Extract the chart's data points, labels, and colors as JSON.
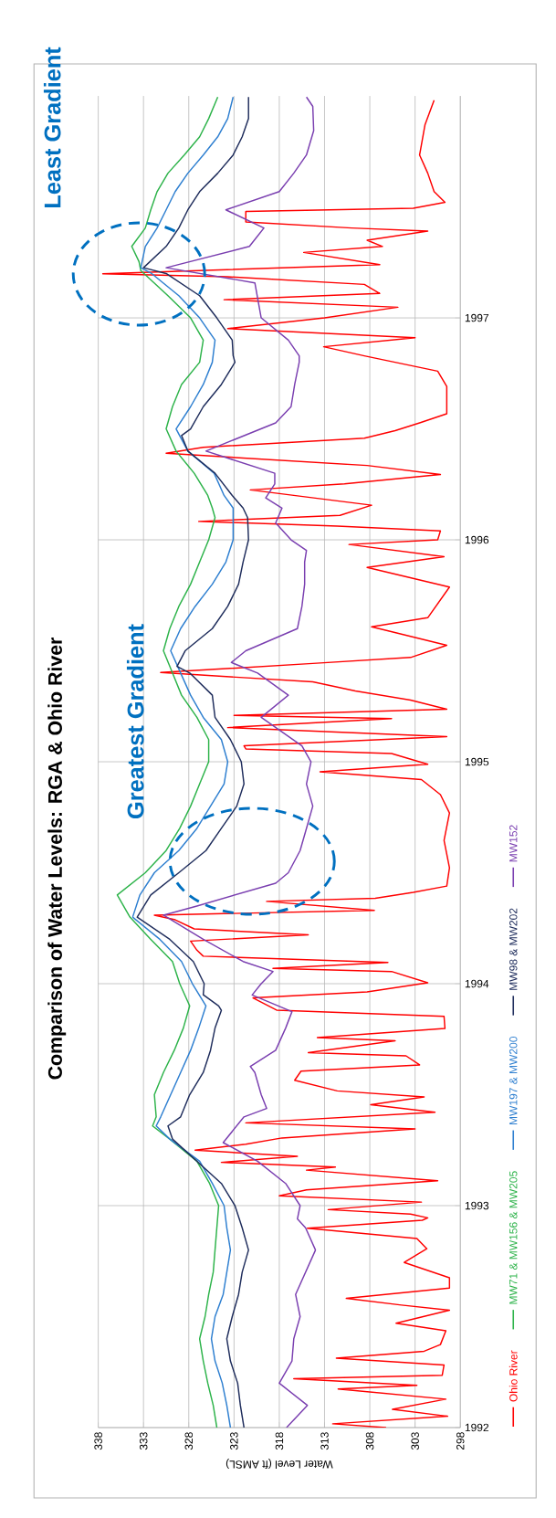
{
  "chart_data": {
    "type": "line",
    "orientation": "horizontal",
    "title": "Comparison of Water Levels: RGA & Ohio River",
    "xlabel": "Water Level (ft AMSL)",
    "xlim": [
      338,
      298
    ],
    "xticks": [
      338,
      333,
      328,
      323,
      318,
      313,
      308,
      303,
      298
    ],
    "ylim": [
      1992,
      1998
    ],
    "yticks": [
      1992,
      1993,
      1994,
      1995,
      1996,
      1997
    ],
    "grid": true,
    "legend": "bottom",
    "marker": "none",
    "line_style": "solid",
    "annotations": [
      "Least Gradient",
      "Greatest Gradient"
    ],
    "series": [
      {
        "name": "Ohio River",
        "color": "#ff0000",
        "x": [
          1992.0,
          1992.017,
          1992.051,
          1992.082,
          1992.128,
          1992.174,
          1992.19,
          1992.22,
          1992.236,
          1992.282,
          1992.313,
          1992.344,
          1992.374,
          1992.436,
          1992.47,
          1992.529,
          1992.552,
          1992.582,
          1992.629,
          1992.675,
          1992.744,
          1992.806,
          1992.852,
          1992.898,
          1992.934,
          1992.945,
          1992.962,
          1992.982,
          1993.016,
          1993.044,
          1993.071,
          1993.112,
          1993.16,
          1993.174,
          1993.195,
          1993.222,
          1993.25,
          1993.277,
          1993.305,
          1993.346,
          1993.373,
          1993.421,
          1993.455,
          1993.49,
          1993.517,
          1993.565,
          1993.606,
          1993.634,
          1993.675,
          1993.689,
          1993.743,
          1993.757,
          1993.798,
          1993.853,
          1993.881,
          1993.936,
          1993.963,
          1994.004,
          1994.055,
          1994.069,
          1994.096,
          1994.124,
          1994.151,
          1994.192,
          1994.22,
          1994.247,
          1994.288,
          1994.309,
          1994.33,
          1994.371,
          1994.385,
          1994.412,
          1994.44,
          1994.522,
          1994.646,
          1994.769,
          1994.852,
          1994.92,
          1994.955,
          1994.989,
          1995.037,
          1995.058,
          1995.072,
          1995.113,
          1995.154,
          1995.195,
          1995.209,
          1995.237,
          1995.278,
          1995.319,
          1995.36,
          1995.402,
          1995.443,
          1995.47,
          1995.525,
          1995.608,
          1995.649,
          1995.787,
          1995.876,
          1995.924,
          1995.979,
          1996.0,
          1996.04,
          1996.062,
          1996.083,
          1996.11,
          1996.156,
          1996.225,
          1996.252,
          1996.294,
          1996.335,
          1996.39,
          1996.417,
          1996.458,
          1996.492,
          1996.527,
          1996.568,
          1996.691,
          1996.76,
          1996.829,
          1996.87,
          1996.911,
          1996.952,
          1997.0,
          1997.048,
          1997.082,
          1997.11,
          1997.151,
          1997.185,
          1997.199,
          1997.24,
          1997.295,
          1997.322,
          1997.35,
          1997.391,
          1997.405,
          1997.432,
          1997.48,
          1997.494,
          1997.521,
          1997.569,
          1997.652,
          1997.734,
          1997.871,
          1997.981
        ],
        "values": [
          306.2,
          312.1,
          299.4,
          305.5,
          299.6,
          311.5,
          302.8,
          316.4,
          300.0,
          299.8,
          311.7,
          302.0,
          300.2,
          299.6,
          305.1,
          299.2,
          304.5,
          310.6,
          299.2,
          299.2,
          304.2,
          301.7,
          302.8,
          314.9,
          302.2,
          301.6,
          303.5,
          312.6,
          302.3,
          318.0,
          315.0,
          300.5,
          315.0,
          311.8,
          324.4,
          316.0,
          327.3,
          321.7,
          317.7,
          303.0,
          321.7,
          300.8,
          307.9,
          302.0,
          311.6,
          316.3,
          315.6,
          302.5,
          304.0,
          314.8,
          305.2,
          313.8,
          299.7,
          299.8,
          318.3,
          320.9,
          308.3,
          301.6,
          305.6,
          318.7,
          306.0,
          326.4,
          327.1,
          327.8,
          314.8,
          327.4,
          329.5,
          331.8,
          307.5,
          319.4,
          307.4,
          303.2,
          299.5,
          299.2,
          299.8,
          299.2,
          300.2,
          302.3,
          313.5,
          301.6,
          305.6,
          321.7,
          321.9,
          299.5,
          323.7,
          305.6,
          323.0,
          299.5,
          303.5,
          309.6,
          314.3,
          331.1,
          314.3,
          303.5,
          299.5,
          307.8,
          301.6,
          299.2,
          308.3,
          299.8,
          310.3,
          300.5,
          300.2,
          311.6,
          326.9,
          311.3,
          307.8,
          321.2,
          310.8,
          300.2,
          308.3,
          330.5,
          326.4,
          308.6,
          305.2,
          302.5,
          299.5,
          299.5,
          300.5,
          308.6,
          313.1,
          303.0,
          323.7,
          313.0,
          304.9,
          324.1,
          306.9,
          308.6,
          323.7,
          337.5,
          306.9,
          315.3,
          306.6,
          308.3,
          301.6,
          310.0,
          321.7,
          321.7,
          303.2,
          299.7,
          300.9,
          301.6,
          302.5,
          301.9,
          300.9
        ]
      },
      {
        "name": "MW71 & MW156 & MW205",
        "color": "#2db34a",
        "x": [
          1992.0,
          1992.1,
          1992.2,
          1992.3,
          1992.4,
          1992.5,
          1992.6,
          1992.7,
          1992.8,
          1992.9,
          1993.0,
          1993.1,
          1993.2,
          1993.3,
          1993.359,
          1993.4,
          1993.5,
          1993.6,
          1993.7,
          1993.8,
          1993.9,
          1994.0,
          1994.1,
          1994.2,
          1994.3,
          1994.4,
          1994.5,
          1994.6,
          1994.7,
          1994.8,
          1994.9,
          1995.0,
          1995.1,
          1995.2,
          1995.3,
          1995.4,
          1995.5,
          1995.6,
          1995.7,
          1995.8,
          1995.9,
          1996.0,
          1996.1,
          1996.143,
          1996.2,
          1996.3,
          1996.4,
          1996.5,
          1996.6,
          1996.7,
          1996.8,
          1996.9,
          1997.0,
          1997.1,
          1997.213,
          1997.254,
          1997.322,
          1997.405,
          1997.487,
          1997.569,
          1997.652,
          1997.734,
          1997.816,
          1997.898,
          1997.995
        ],
        "values": [
          324.9,
          325.3,
          325.9,
          326.4,
          326.8,
          326.2,
          325.8,
          325.3,
          325.1,
          324.9,
          324.7,
          325.7,
          327.1,
          330.1,
          332.0,
          331.6,
          331.8,
          330.8,
          329.6,
          328.6,
          327.9,
          329.0,
          329.8,
          332.2,
          334.5,
          335.9,
          332.8,
          330.5,
          329.0,
          327.8,
          326.8,
          325.8,
          325.8,
          327.1,
          328.8,
          329.8,
          330.8,
          330.1,
          329.1,
          327.8,
          326.8,
          325.8,
          325.1,
          325.4,
          325.9,
          327.4,
          329.4,
          330.5,
          329.8,
          328.8,
          326.8,
          326.4,
          327.8,
          330.3,
          333.3,
          333.5,
          334.3,
          332.8,
          332.2,
          331.5,
          330.3,
          328.5,
          326.8,
          325.8,
          324.8
        ]
      },
      {
        "name": "MW197 & MW200",
        "color": "#2e7fd0",
        "x": [
          1992.0,
          1992.1,
          1992.2,
          1992.3,
          1992.4,
          1992.5,
          1992.6,
          1992.7,
          1992.8,
          1992.9,
          1993.0,
          1993.1,
          1993.2,
          1993.3,
          1993.359,
          1993.4,
          1993.5,
          1993.6,
          1993.7,
          1993.8,
          1993.9,
          1994.0,
          1994.1,
          1994.2,
          1994.3,
          1994.4,
          1994.5,
          1994.6,
          1994.7,
          1994.8,
          1994.9,
          1995.0,
          1995.1,
          1995.2,
          1995.3,
          1995.4,
          1995.5,
          1995.6,
          1995.7,
          1995.8,
          1995.9,
          1996.0,
          1996.1,
          1996.143,
          1996.2,
          1996.3,
          1996.4,
          1996.5,
          1996.6,
          1996.7,
          1996.8,
          1996.9,
          1997.0,
          1997.1,
          1997.2,
          1997.226,
          1997.322,
          1997.405,
          1997.487,
          1997.569,
          1997.652,
          1997.734,
          1997.816,
          1997.898,
          1997.995
        ],
        "values": [
          323.4,
          323.8,
          324.3,
          325.1,
          325.5,
          325.1,
          324.2,
          323.8,
          323.4,
          323.8,
          324.1,
          325.4,
          326.8,
          330.1,
          331.6,
          331.1,
          330.0,
          328.9,
          327.8,
          326.9,
          326.1,
          327.6,
          328.8,
          331.2,
          334.2,
          333.4,
          331.8,
          329.1,
          327.1,
          325.6,
          324.1,
          323.7,
          324.4,
          326.4,
          327.8,
          328.9,
          330.0,
          328.9,
          327.3,
          325.4,
          323.9,
          323.1,
          323.1,
          323.1,
          324.1,
          325.2,
          328.1,
          329.4,
          327.8,
          326.4,
          325.4,
          325.1,
          326.8,
          329.1,
          332.1,
          333.3,
          332.8,
          331.5,
          330.5,
          329.5,
          328.1,
          326.4,
          324.8,
          323.7,
          323.1
        ]
      },
      {
        "name": "MW98 & MW202",
        "color": "#1f2d5c",
        "x": [
          1992.0,
          1992.1,
          1992.2,
          1992.3,
          1992.4,
          1992.5,
          1992.6,
          1992.7,
          1992.8,
          1992.9,
          1993.0,
          1993.1,
          1993.2,
          1993.3,
          1993.359,
          1993.4,
          1993.5,
          1993.6,
          1993.7,
          1993.8,
          1993.88,
          1993.9,
          1993.95,
          1994.0,
          1994.1,
          1994.2,
          1994.3,
          1994.4,
          1994.5,
          1994.6,
          1994.7,
          1994.8,
          1994.9,
          1995.0,
          1995.1,
          1995.2,
          1995.3,
          1995.4,
          1995.43,
          1995.5,
          1995.6,
          1995.7,
          1995.8,
          1995.9,
          1996.0,
          1996.1,
          1996.143,
          1996.2,
          1996.3,
          1996.4,
          1996.47,
          1996.5,
          1996.6,
          1996.7,
          1996.8,
          1996.83,
          1996.9,
          1997.0,
          1997.1,
          1997.2,
          1997.226,
          1997.322,
          1997.405,
          1997.487,
          1997.569,
          1997.652,
          1997.734,
          1997.816,
          1997.898,
          1997.995
        ],
        "values": [
          321.9,
          322.3,
          322.6,
          323.4,
          323.8,
          323.2,
          322.5,
          322.1,
          321.4,
          322.1,
          322.9,
          324.4,
          327.1,
          329.8,
          330.3,
          328.9,
          327.9,
          326.4,
          325.6,
          325.1,
          324.4,
          324.7,
          326.4,
          326.3,
          327.5,
          330.1,
          333.7,
          332.2,
          329.1,
          326.1,
          324.4,
          322.7,
          321.9,
          322.2,
          323.4,
          325.1,
          325.4,
          327.9,
          329.3,
          328.4,
          325.4,
          323.7,
          322.5,
          322.0,
          321.4,
          321.5,
          322.0,
          323.2,
          325.1,
          328.1,
          328.8,
          327.8,
          326.4,
          324.4,
          322.9,
          323.1,
          323.2,
          324.9,
          326.8,
          330.5,
          333.0,
          330.5,
          329.1,
          328.1,
          326.8,
          324.8,
          323.1,
          322.1,
          321.4,
          321.4
        ]
      },
      {
        "name": "MW152",
        "color": "#7a3fb0",
        "x": [
          1992.0,
          1992.1,
          1992.2,
          1992.3,
          1992.4,
          1992.5,
          1992.6,
          1992.7,
          1992.8,
          1992.9,
          1992.94,
          1993.0,
          1993.1,
          1993.2,
          1993.284,
          1993.4,
          1993.438,
          1993.5,
          1993.6,
          1993.627,
          1993.7,
          1993.8,
          1993.874,
          1993.949,
          1994.0,
          1994.055,
          1994.1,
          1994.2,
          1994.309,
          1994.35,
          1994.453,
          1994.5,
          1994.6,
          1994.7,
          1994.8,
          1994.9,
          1995.0,
          1995.072,
          1995.2,
          1995.3,
          1995.4,
          1995.447,
          1995.5,
          1995.6,
          1995.7,
          1995.8,
          1995.9,
          1995.952,
          1996.0,
          1996.076,
          1996.143,
          1996.189,
          1996.252,
          1996.3,
          1996.4,
          1996.527,
          1996.6,
          1996.7,
          1996.8,
          1996.829,
          1996.9,
          1997.0,
          1997.158,
          1997.226,
          1997.322,
          1997.405,
          1997.487,
          1997.569,
          1997.652,
          1997.734,
          1997.844,
          1997.953,
          1997.995
        ],
        "values": [
          317.2,
          314.9,
          318.0,
          316.6,
          316.4,
          315.7,
          316.2,
          315.1,
          314.0,
          315.1,
          316.0,
          315.7,
          317.3,
          320.4,
          324.2,
          321.9,
          319.4,
          320.0,
          320.7,
          321.2,
          318.4,
          317.3,
          316.6,
          321.0,
          320.0,
          318.7,
          322.0,
          326.4,
          330.8,
          327.1,
          318.4,
          317.0,
          315.7,
          315.0,
          314.3,
          315.0,
          314.5,
          315.5,
          320.0,
          317.0,
          320.4,
          323.3,
          321.7,
          316.0,
          315.5,
          315.2,
          315.2,
          315.0,
          316.7,
          318.4,
          317.7,
          319.5,
          318.5,
          318.5,
          326.1,
          318.4,
          316.7,
          316.3,
          315.8,
          315.8,
          317.0,
          320.0,
          320.7,
          330.5,
          321.3,
          319.7,
          323.9,
          318.0,
          316.4,
          315.0,
          314.2,
          314.3,
          315.0
        ]
      }
    ]
  }
}
